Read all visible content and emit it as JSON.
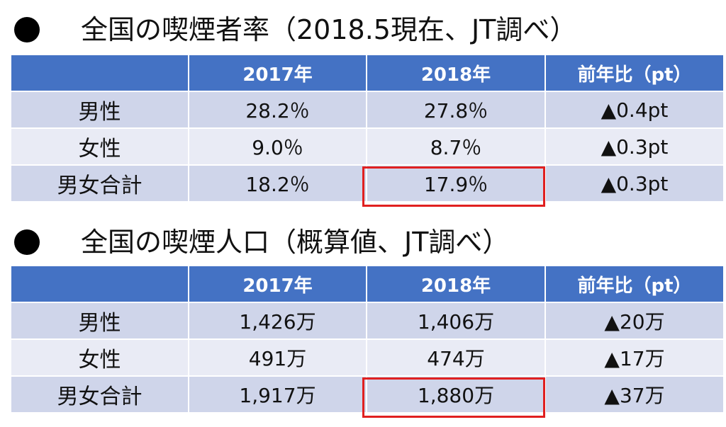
{
  "sections": [
    {
      "title": "全国の喫煙者率（2018.5現在、JT調べ）",
      "headers": [
        "",
        "2017年",
        "2018年",
        "前年比（pt）"
      ],
      "rows": [
        {
          "label": "男性",
          "v2017": "28.2％",
          "v2018": "27.8％",
          "diff": "▲0.4pt"
        },
        {
          "label": "女性",
          "v2017": "9.0％",
          "v2018": "8.7％",
          "diff": "▲0.3pt"
        },
        {
          "label": "男女合計",
          "v2017": "18.2％",
          "v2018": "17.9％",
          "diff": "▲0.3pt"
        }
      ]
    },
    {
      "title": "全国の喫煙人口（概算値、JT調べ）",
      "headers": [
        "",
        "2017年",
        "2018年",
        "前年比（pt）"
      ],
      "rows": [
        {
          "label": "男性",
          "v2017": "1,426万",
          "v2018": "1,406万",
          "diff": "▲20万"
        },
        {
          "label": "女性",
          "v2017": "491万",
          "v2018": "474万",
          "diff": "▲17万"
        },
        {
          "label": "男女合計",
          "v2017": "1,917万",
          "v2018": "1,880万",
          "diff": "▲37万"
        }
      ]
    }
  ],
  "colors": {
    "header_bg": "#4472c4",
    "row_dark": "#cfd5ea",
    "row_light": "#e9ebf5",
    "highlight": "#e02020"
  }
}
